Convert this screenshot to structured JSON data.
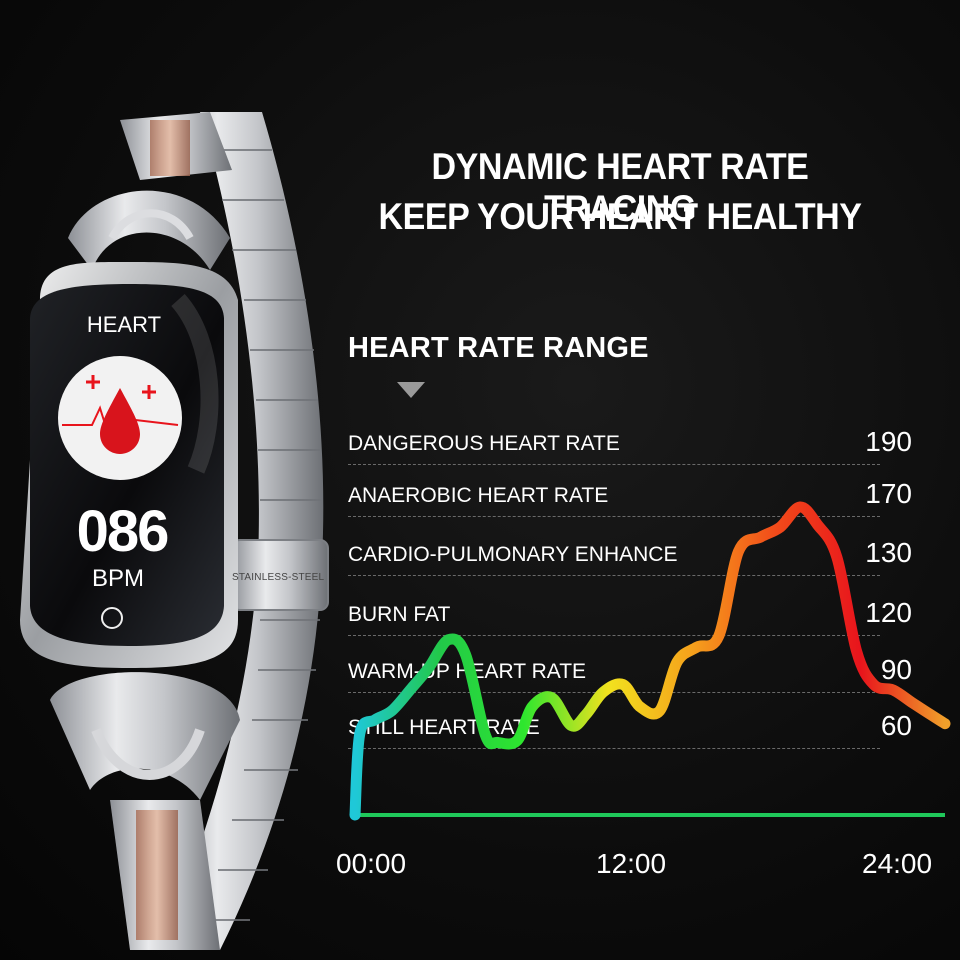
{
  "headline": {
    "line1": "DYNAMIC HEART RATE TRACING",
    "line2": "KEEP YOUR HEART HEALTHY"
  },
  "device_screen": {
    "title": "HEART",
    "value": "086",
    "unit": "BPM",
    "icon": "heart-rate-drop-icon"
  },
  "band_label": "STAINLESS-STEEL",
  "chart_data": {
    "type": "line",
    "title": "HEART RATE RANGE",
    "zones": [
      {
        "label": "DANGEROUS HEART RATE",
        "value": "190"
      },
      {
        "label": "ANAEROBIC HEART RATE",
        "value": "170"
      },
      {
        "label": "CARDIO-PULMONARY ENHANCE",
        "value": "130"
      },
      {
        "label": "BURN FAT",
        "value": "120"
      },
      {
        "label": "WARM-UP HEART RATE",
        "value": "90"
      },
      {
        "label": "STILL HEART RATE",
        "value": "60"
      }
    ],
    "x_ticks": [
      "00:00",
      "12:00",
      "24:00"
    ],
    "grid": true,
    "series": [
      {
        "x": [
          0,
          0.2,
          0.8,
          1.5,
          2.3,
          3.0,
          3.8,
          4.5,
          5.3,
          5.8,
          6.6,
          7.2,
          8.0,
          8.8,
          9.4,
          10.1,
          10.9,
          11.6,
          12.4,
          13.1,
          13.9,
          14.8,
          15.6,
          16.5,
          17.3,
          18.1,
          18.8,
          19.6,
          20.4,
          21.1,
          21.9,
          22.7,
          23.4,
          24.0
        ],
        "y": [
          40,
          68,
          75,
          80,
          92,
          103,
          118,
          110,
          67,
          63,
          64,
          82,
          87,
          72,
          78,
          90,
          94,
          82,
          80,
          106,
          114,
          120,
          148,
          158,
          165,
          175,
          167,
          144,
          112,
          94,
          91,
          84,
          78,
          73
        ],
        "color_scale": [
          "#1fc8d8",
          "#22c84a",
          "#2ee62e",
          "#f2e21e",
          "#f5a11c",
          "#f24a1a",
          "#e8141c",
          "#f0a02a"
        ]
      },
      {
        "x": [
          0,
          24
        ],
        "y": [
          40,
          40
        ],
        "color": "#1fc85a"
      }
    ]
  },
  "colors": {
    "background": "#0b0b0b",
    "accent_red": "#e8141c",
    "accent_green": "#22c84a",
    "accent_cyan": "#1fc8d8"
  }
}
